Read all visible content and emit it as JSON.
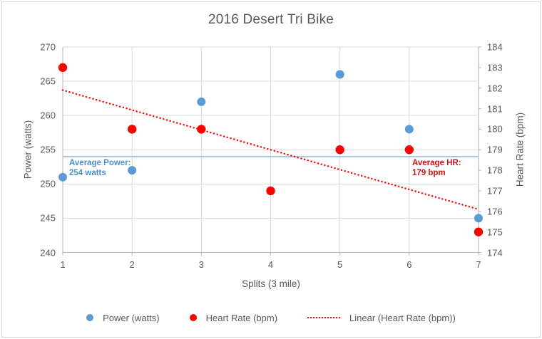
{
  "window": {
    "background": "#FFFFFF",
    "border_color": "#D8D8D8"
  },
  "colors": {
    "grid": "#D9D9D9",
    "axis": "#BFBFBF",
    "text": "#595959"
  },
  "chart_data": {
    "type": "scatter",
    "title": "2016 Desert Tri Bike",
    "xlabel": "Splits (3 mile)",
    "ylabel_left": "Power (watts)",
    "ylabel_right": "Heart Rate (bpm)",
    "x_ticks": [
      1,
      2,
      3,
      4,
      5,
      6,
      7
    ],
    "xlim": [
      1,
      7
    ],
    "y_left_ticks": [
      240,
      245,
      250,
      255,
      260,
      265,
      270
    ],
    "ylim_left": [
      240,
      270
    ],
    "y_right_ticks": [
      174,
      175,
      176,
      177,
      178,
      179,
      180,
      181,
      182,
      183,
      184
    ],
    "ylim_right": [
      174,
      184
    ],
    "grid": true,
    "legend_position": "bottom",
    "series": [
      {
        "name": "Power (watts)",
        "axis": "left",
        "type": "scatter",
        "color": "#5B9BD5",
        "x": [
          1,
          2,
          3,
          5,
          6,
          7
        ],
        "values": [
          251,
          252,
          262,
          266,
          258,
          245
        ]
      },
      {
        "name": "Heart Rate (bpm)",
        "axis": "right",
        "type": "scatter",
        "color": "#FF0000",
        "x": [
          1,
          2,
          3,
          4,
          5,
          6,
          7
        ],
        "values": [
          183,
          180,
          180,
          177,
          179,
          179,
          175
        ]
      },
      {
        "name": "Linear (Heart Rate (bpm))",
        "axis": "right",
        "type": "trendline",
        "style": "dotted",
        "color": "#FF0000",
        "x": [
          1,
          7
        ],
        "values": [
          181.9,
          176.1
        ]
      }
    ],
    "average_lines": [
      {
        "label_line1": "Average Power:",
        "label_line2": "254 watts",
        "value": 254,
        "axis": "left",
        "has_line": true,
        "line_color": "#9DC3E6",
        "label_color": "#4D8FCC"
      },
      {
        "label_line1": "Average HR:",
        "label_line2": "179 bpm",
        "value": 179,
        "axis": "right",
        "has_line": false,
        "label_color": "#C51718"
      }
    ]
  }
}
